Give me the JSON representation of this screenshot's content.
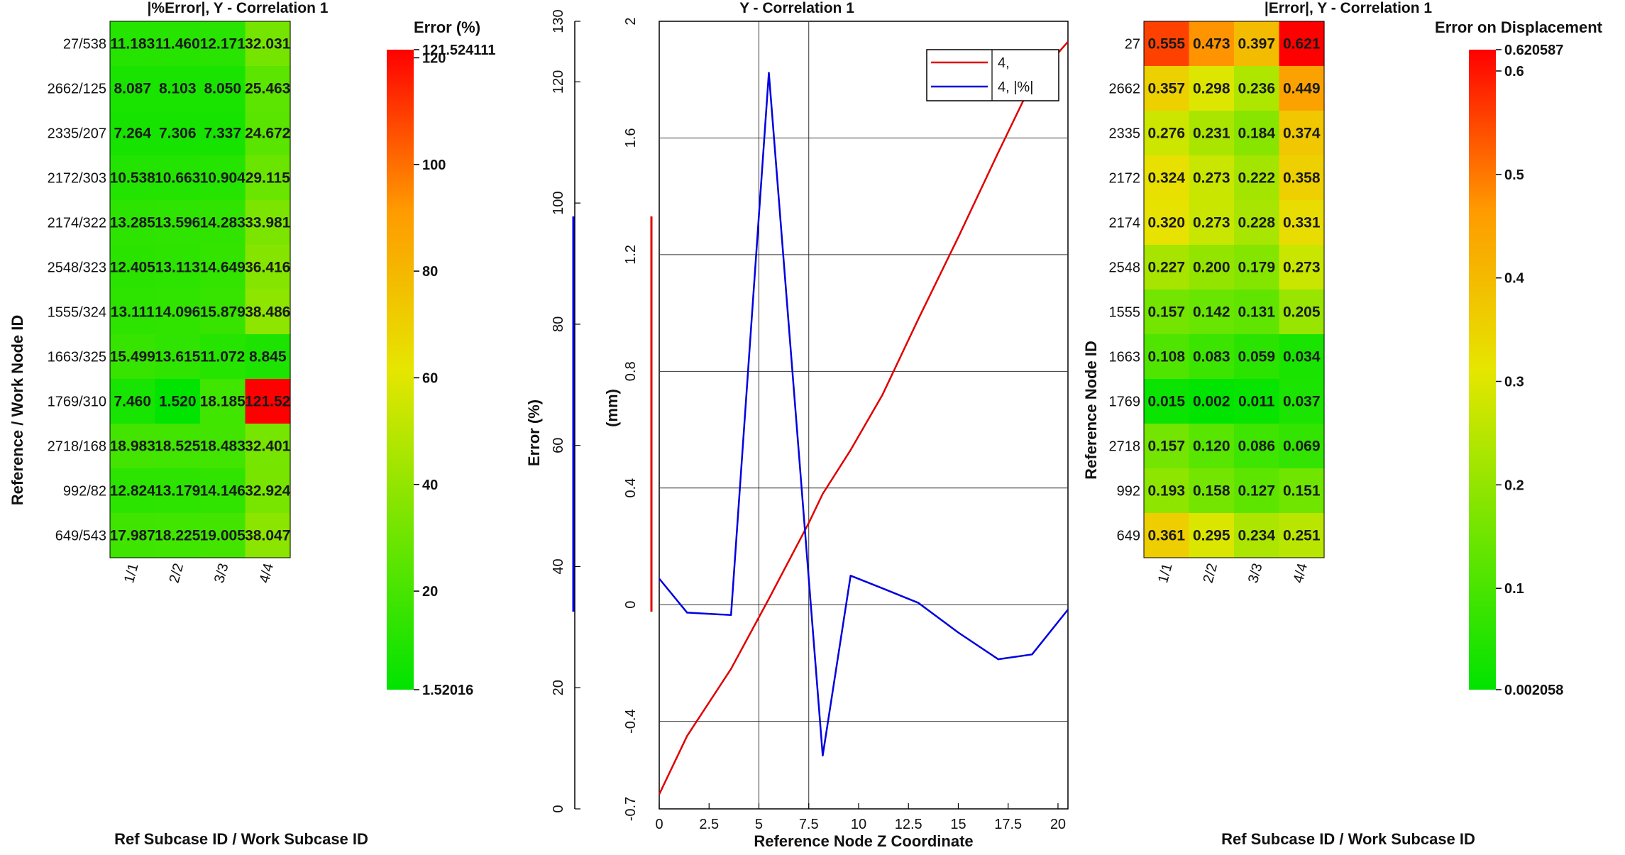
{
  "heatmap_left": {
    "title": "|%Error|, Y - Correlation 1",
    "ylabel": "Reference / Work Node ID",
    "xlabel": "Ref Subcase ID / Work Subcase ID",
    "colorbar_title": "Error (%)",
    "colorbar_ticks": [
      "121.524111",
      "120",
      "100",
      "80",
      "60",
      "40",
      "20",
      "1.52016"
    ],
    "colorbar_values": [
      121.524111,
      120,
      100,
      80,
      60,
      40,
      20,
      1.52016
    ]
  },
  "line_chart": {
    "title": "Y - Correlation 1",
    "xlabel": "Reference Node Z Coordinate",
    "ylabel_left": "Error (%)",
    "ylabel_right": "(mm)",
    "legend": [
      "4,",
      "4, |%|"
    ]
  },
  "heatmap_right": {
    "title": "|Error|, Y - Correlation 1",
    "ylabel": "Reference Node ID",
    "xlabel": "Ref Subcase ID / Work Subcase ID",
    "colorbar_title": "Error on Displacement",
    "colorbar_ticks": [
      "0.620587",
      "0.6",
      "0.5",
      "0.4",
      "0.3",
      "0.2",
      "0.1",
      "0.002058"
    ],
    "colorbar_values": [
      0.620587,
      0.6,
      0.5,
      0.4,
      0.3,
      0.2,
      0.1,
      0.002058
    ]
  },
  "colors": {
    "min": "#00e400",
    "mid": "#e6e600",
    "max": "#ff0000",
    "line_red": "#e00000",
    "line_blue": "#0000e0"
  },
  "chart_data": [
    {
      "type": "heatmap",
      "title": "|%Error|, Y - Correlation 1",
      "xlabel": "Ref Subcase ID / Work Subcase ID",
      "ylabel": "Reference / Work Node ID",
      "columns": [
        "1/1",
        "2/2",
        "3/3",
        "4/4"
      ],
      "rows": [
        "27/538",
        "2662/125",
        "2335/207",
        "2172/303",
        "2174/322",
        "2548/323",
        "1555/324",
        "1663/325",
        "1769/310",
        "2718/168",
        "992/82",
        "649/543"
      ],
      "values": [
        [
          11.183,
          11.46,
          12.171,
          32.031
        ],
        [
          8.087,
          8.103,
          8.05,
          25.463
        ],
        [
          7.264,
          7.306,
          7.337,
          24.672
        ],
        [
          10.538,
          10.663,
          10.904,
          29.115
        ],
        [
          13.285,
          13.596,
          14.283,
          33.981
        ],
        [
          12.405,
          13.113,
          14.649,
          36.416
        ],
        [
          13.111,
          14.096,
          15.879,
          38.486
        ],
        [
          15.499,
          13.615,
          11.072,
          8.845
        ],
        [
          7.46,
          1.52,
          18.185,
          121.524111
        ],
        [
          18.983,
          18.525,
          18.483,
          32.401
        ],
        [
          12.824,
          13.179,
          14.146,
          32.924
        ],
        [
          17.987,
          18.225,
          19.005,
          38.047
        ]
      ],
      "labels": [
        [
          "11.183",
          "11.460",
          "12.171",
          "32.031"
        ],
        [
          "8.087",
          "8.103",
          "8.050",
          "25.463"
        ],
        [
          "7.264",
          "7.306",
          "7.337",
          "24.672"
        ],
        [
          "10.538",
          "10.663",
          "10.904",
          "29.115"
        ],
        [
          "13.285",
          "13.596",
          "14.283",
          "33.981"
        ],
        [
          "12.405",
          "13.113",
          "14.649",
          "36.416"
        ],
        [
          "13.111",
          "14.096",
          "15.879",
          "38.486"
        ],
        [
          "15.499",
          "13.615",
          "11.072",
          "8.845"
        ],
        [
          "7.460",
          "1.520",
          "18.185",
          "121.52"
        ],
        [
          "18.983",
          "18.525",
          "18.483",
          "32.401"
        ],
        [
          "12.824",
          "13.179",
          "14.146",
          "32.924"
        ],
        [
          "17.987",
          "18.225",
          "19.005",
          "38.047"
        ]
      ],
      "colorbar": {
        "min": 1.52016,
        "max": 121.524111
      }
    },
    {
      "type": "line",
      "title": "Y - Correlation 1",
      "xlabel": "Reference Node Z Coordinate",
      "xlim": [
        0,
        20.5
      ],
      "xticks": [
        "0",
        "2.5",
        "5",
        "7.5",
        "10",
        "12.5",
        "15",
        "17.5",
        "20"
      ],
      "y_left": {
        "label": "Error (%)",
        "lim": [
          0,
          130
        ],
        "ticks": [
          "0",
          "20",
          "40",
          "60",
          "80",
          "100",
          "120",
          "130"
        ]
      },
      "y_right": {
        "label": "(mm)",
        "lim": [
          -0.7,
          2.0
        ],
        "ticks": [
          "-0.7",
          "-0.4",
          "0",
          "0.4",
          "0.8",
          "1.2",
          "1.6",
          "2"
        ]
      },
      "grid": true,
      "legend_position": "top-right",
      "series": [
        {
          "name": "4,",
          "axis": "right",
          "color": "#e00000",
          "x": [
            0,
            1.4,
            3.6,
            5.5,
            7.5,
            8.2,
            9.6,
            11.2,
            13.0,
            15.0,
            17.0,
            18.7,
            20.5
          ],
          "y": [
            -0.65,
            -0.45,
            -0.22,
            0.02,
            0.28,
            0.38,
            0.53,
            0.72,
            0.98,
            1.26,
            1.55,
            1.79,
            1.93
          ]
        },
        {
          "name": "4, |%|",
          "axis": "left",
          "color": "#0000e0",
          "x": [
            0,
            1.4,
            3.6,
            5.5,
            8.2,
            9.6,
            11.2,
            13.0,
            15.0,
            17.0,
            18.7,
            20.5
          ],
          "y": [
            38.0,
            32.4,
            32.0,
            121.5,
            8.8,
            38.5,
            36.4,
            34.0,
            29.1,
            24.7,
            25.5,
            32.9
          ]
        }
      ]
    },
    {
      "type": "heatmap",
      "title": "|Error|, Y - Correlation 1",
      "xlabel": "Ref Subcase ID / Work Subcase ID",
      "ylabel": "Reference Node ID",
      "columns": [
        "1/1",
        "2/2",
        "3/3",
        "4/4"
      ],
      "rows": [
        "27",
        "2662",
        "2335",
        "2172",
        "2174",
        "2548",
        "1555",
        "1663",
        "1769",
        "2718",
        "992",
        "649"
      ],
      "values": [
        [
          0.555,
          0.473,
          0.397,
          0.620587
        ],
        [
          0.357,
          0.298,
          0.236,
          0.449
        ],
        [
          0.276,
          0.231,
          0.184,
          0.374
        ],
        [
          0.324,
          0.273,
          0.222,
          0.358
        ],
        [
          0.32,
          0.273,
          0.228,
          0.331
        ],
        [
          0.227,
          0.2,
          0.179,
          0.273
        ],
        [
          0.157,
          0.142,
          0.131,
          0.205
        ],
        [
          0.108,
          0.083,
          0.059,
          0.034
        ],
        [
          0.015,
          0.002058,
          0.011,
          0.037
        ],
        [
          0.157,
          0.12,
          0.086,
          0.069
        ],
        [
          0.193,
          0.158,
          0.127,
          0.151
        ],
        [
          0.361,
          0.295,
          0.234,
          0.251
        ]
      ],
      "labels": [
        [
          "0.555",
          "0.473",
          "0.397",
          "0.621"
        ],
        [
          "0.357",
          "0.298",
          "0.236",
          "0.449"
        ],
        [
          "0.276",
          "0.231",
          "0.184",
          "0.374"
        ],
        [
          "0.324",
          "0.273",
          "0.222",
          "0.358"
        ],
        [
          "0.320",
          "0.273",
          "0.228",
          "0.331"
        ],
        [
          "0.227",
          "0.200",
          "0.179",
          "0.273"
        ],
        [
          "0.157",
          "0.142",
          "0.131",
          "0.205"
        ],
        [
          "0.108",
          "0.083",
          "0.059",
          "0.034"
        ],
        [
          "0.015",
          "0.002",
          "0.011",
          "0.037"
        ],
        [
          "0.157",
          "0.120",
          "0.086",
          "0.069"
        ],
        [
          "0.193",
          "0.158",
          "0.127",
          "0.151"
        ],
        [
          "0.361",
          "0.295",
          "0.234",
          "0.251"
        ]
      ],
      "colorbar": {
        "min": 0.002058,
        "max": 0.620587
      }
    }
  ]
}
